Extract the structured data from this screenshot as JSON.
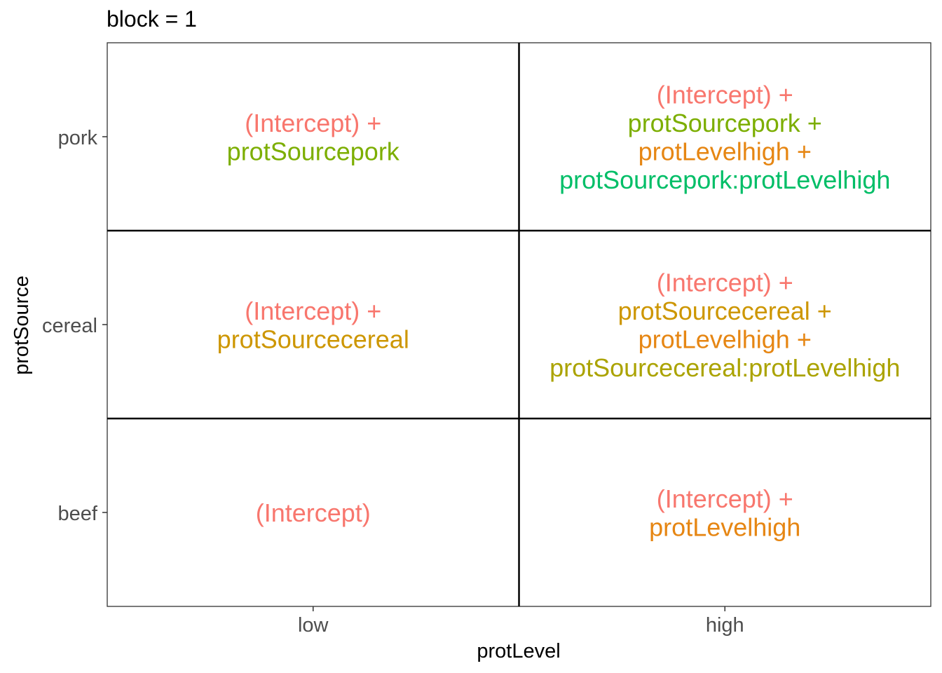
{
  "chart_data": {
    "type": "table",
    "title": "block = 1",
    "xlabel": "protLevel",
    "ylabel": "protSource",
    "x_categories": [
      "low",
      "high"
    ],
    "y_categories": [
      "beef",
      "cereal",
      "pork"
    ],
    "grid": true,
    "colors": {
      "(Intercept)": "#F8766D",
      "protSourcepork": "#7CAE00",
      "protSourcecereal": "#CD9600",
      "protLevelhigh": "#E68613",
      "protSourcepork:protLevelhigh": "#00BE67",
      "protSourcecereal:protLevelhigh": "#ABA300"
    },
    "cells": [
      {
        "x": "low",
        "y": "pork",
        "terms": [
          "(Intercept)",
          "protSourcepork"
        ]
      },
      {
        "x": "high",
        "y": "pork",
        "terms": [
          "(Intercept)",
          "protSourcepork",
          "protLevelhigh",
          "protSourcepork:protLevelhigh"
        ]
      },
      {
        "x": "low",
        "y": "cereal",
        "terms": [
          "(Intercept)",
          "protSourcecereal"
        ]
      },
      {
        "x": "high",
        "y": "cereal",
        "terms": [
          "(Intercept)",
          "protSourcecereal",
          "protLevelhigh",
          "protSourcecereal:protLevelhigh"
        ]
      },
      {
        "x": "low",
        "y": "beef",
        "terms": [
          "(Intercept)"
        ]
      },
      {
        "x": "high",
        "y": "beef",
        "terms": [
          "(Intercept)",
          "protLevelhigh"
        ]
      }
    ]
  }
}
